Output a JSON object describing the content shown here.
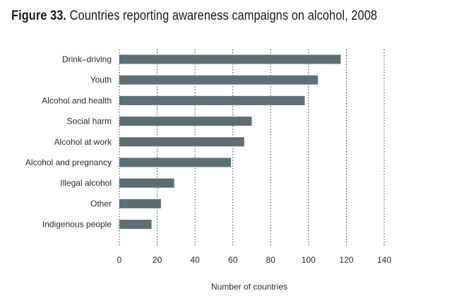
{
  "title": {
    "figure_number": "Figure 33.",
    "text": "Countries reporting awareness campaigns on alcohol, 2008"
  },
  "colors": {
    "bar": "#5f6e75",
    "grid": "#3a3a3a",
    "text": "#2b2b2b"
  },
  "chart_data": {
    "type": "bar",
    "orientation": "horizontal",
    "title": "Figure 33. Countries reporting awareness campaigns on alcohol, 2008",
    "xlabel": "Number of countries",
    "ylabel": "",
    "categories": [
      "Drink–driving",
      "Youth",
      "Alcohol and health",
      "Social harm",
      "Alcohol at work",
      "Alcohol and pregnancy",
      "Illegal alcohol",
      "Other",
      "Indigenous people"
    ],
    "values": [
      117,
      105,
      98,
      70,
      66,
      59,
      29,
      22,
      17
    ],
    "xlim": [
      0,
      140
    ],
    "xticks": [
      0,
      20,
      40,
      60,
      80,
      100,
      120,
      140
    ],
    "grid": "vertical dotted"
  }
}
